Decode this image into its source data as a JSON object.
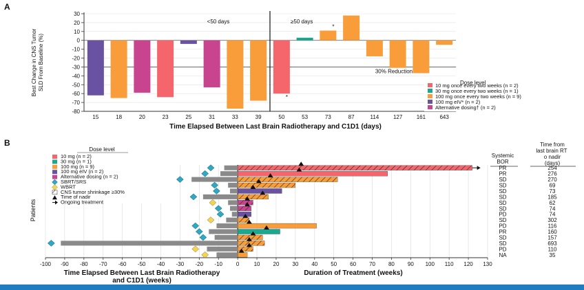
{
  "colors": {
    "red": "#f4666b",
    "teal": "#1aa88f",
    "orange": "#f99d3a",
    "purple": "#6a52a3",
    "magenta": "#c9448f",
    "gray": "#8a8a8a",
    "diamond": "#2fa8c6",
    "wbrt": "#f4d54b",
    "footer": "#1f7cc1"
  },
  "chart_data": [
    {
      "type": "bar",
      "panel_label": "A",
      "ylabel": "Best Change in CNS Tumor SLD From Baseline (%)",
      "xlabel": "Time Elapsed Between Last Brain Radiotherapy and C1D1 (days)",
      "ylim": [
        -80,
        30
      ],
      "yticks": [
        30,
        20,
        10,
        0,
        -10,
        -20,
        -30,
        -40,
        -50,
        -60,
        -70,
        -80
      ],
      "categories": [
        "15",
        "18",
        "20",
        "23",
        "25",
        "31",
        "33",
        "39",
        "50",
        "53",
        "73",
        "87",
        "114",
        "127",
        "161",
        "643"
      ],
      "values": [
        -62,
        -65,
        -59,
        -64,
        -4,
        -53,
        -77,
        -68,
        -60,
        3,
        11,
        28,
        -18,
        -31,
        -37,
        -5
      ],
      "dose": [
        "eIV",
        "100",
        "alt",
        "10",
        "eIV",
        "alt",
        "100",
        "100",
        "10",
        "30",
        "100",
        "100",
        "100",
        "100",
        "100",
        "100"
      ],
      "asterisk_on": [
        "50",
        "73"
      ],
      "split_before": "50",
      "group_labels": [
        "<50 days",
        "≥50 days"
      ],
      "reference_line": {
        "value": -30,
        "label": "30% Reduction"
      },
      "legend": {
        "title": "Dose level",
        "entries": [
          {
            "key": "10",
            "label": "10 mg once every two weeks (n = 2)"
          },
          {
            "key": "30",
            "label": "30 mg once every two weeks (n = 1)"
          },
          {
            "key": "100",
            "label": "100 mg once every two weeks (n = 9)"
          },
          {
            "key": "eIV",
            "label": "100 mg eIV* (n = 2)"
          },
          {
            "key": "alt",
            "label": "Alternative dosing† (n = 2)"
          }
        ]
      }
    },
    {
      "type": "swimmer",
      "panel_label": "B",
      "ylabel": "Patients",
      "xlabel_left": "Time Elapsed Between Last Brain Radiotherapy and C1D1 (weeks)",
      "xlabel_right": "Duration of Treatment (weeks)",
      "xlim": [
        -100,
        130
      ],
      "xticks": [
        -100,
        -90,
        -80,
        -70,
        -60,
        -50,
        -40,
        -30,
        -20,
        -10,
        0,
        10,
        20,
        30,
        40,
        50,
        60,
        70,
        80,
        90,
        100,
        110,
        120,
        130
      ],
      "rows": [
        {
          "dose": "10",
          "pre": -7,
          "duration": 122,
          "srs_at": -14,
          "wbrt_at": null,
          "shrink": true,
          "nadir": 33,
          "ongoing": true
        },
        {
          "dose": "10",
          "pre": -9,
          "duration": 78,
          "srs_at": -17,
          "wbrt_at": null,
          "shrink": false,
          "nadir": 32,
          "ongoing": false
        },
        {
          "dose": "100",
          "pre": -24,
          "duration": 52,
          "srs_at": -30,
          "wbrt_at": null,
          "shrink": true,
          "nadir": 17,
          "ongoing": false
        },
        {
          "dose": "100",
          "pre": -5,
          "duration": 30,
          "srs_at": -12,
          "wbrt_at": null,
          "shrink": true,
          "nadir": 11,
          "ongoing": false
        },
        {
          "dose": "eIV",
          "pre": -4,
          "duration": 23,
          "srs_at": -11,
          "wbrt_at": null,
          "shrink": false,
          "nadir": 8,
          "ongoing": false
        },
        {
          "dose": "100",
          "pre": -18,
          "duration": 16,
          "srs_at": -23,
          "wbrt_at": null,
          "shrink": true,
          "nadir": 13,
          "ongoing": false
        },
        {
          "dose": "alt",
          "pre": -5,
          "duration": 8,
          "srs_at": null,
          "wbrt_at": -13,
          "shrink": true,
          "nadir": 5,
          "ongoing": false
        },
        {
          "dose": "alt",
          "pre": -4,
          "duration": 7,
          "srs_at": -10,
          "wbrt_at": null,
          "shrink": true,
          "nadir": 5,
          "ongoing": false
        },
        {
          "dose": "eIV",
          "pre": -3,
          "duration": 7,
          "srs_at": -9,
          "wbrt_at": null,
          "shrink": false,
          "nadir": null,
          "ongoing": false
        },
        {
          "dose": "100",
          "pre": -6,
          "duration": 6,
          "srs_at": null,
          "wbrt_at": -14,
          "shrink": true,
          "nadir": 4,
          "ongoing": false
        },
        {
          "dose": "100",
          "pre": -11,
          "duration": 41,
          "srs_at": -22,
          "wbrt_at": null,
          "shrink": false,
          "nadir": 6,
          "ongoing": false
        },
        {
          "dose": "30",
          "pre": -15,
          "duration": 22,
          "srs_at": -20,
          "wbrt_at": null,
          "shrink": false,
          "nadir": 15,
          "ongoing": false
        },
        {
          "dose": "100",
          "pre": -12,
          "duration": 13,
          "srs_at": -18,
          "wbrt_at": null,
          "shrink": true,
          "nadir": 8,
          "ongoing": false
        },
        {
          "dose": "100",
          "pre": -92,
          "duration": 14,
          "srs_at": -97,
          "wbrt_at": null,
          "shrink": true,
          "nadir": 6,
          "ongoing": false
        },
        {
          "dose": "100",
          "pre": -16,
          "duration": 8,
          "srs_at": null,
          "wbrt_at": -22,
          "shrink": true,
          "nadir": 6,
          "ongoing": false
        },
        {
          "dose": "100",
          "pre": -11,
          "duration": 5,
          "srs_at": null,
          "wbrt_at": -17,
          "shrink": false,
          "nadir": 2,
          "ongoing": false
        }
      ],
      "legend": {
        "title": "Dose level",
        "entries": [
          {
            "kind": "swatch",
            "key": "10",
            "label": "10 mg (n = 2)"
          },
          {
            "kind": "swatch",
            "key": "30",
            "label": "30 mg (n = 1)"
          },
          {
            "kind": "swatch",
            "key": "100",
            "label": "100 mg (n = 9)"
          },
          {
            "kind": "swatch",
            "key": "eIV",
            "label": "100 mg eIV (n = 2)"
          },
          {
            "kind": "swatch",
            "key": "alt",
            "label": "Alternative dosing (n = 2)"
          },
          {
            "kind": "srs",
            "label": "SBRT/SRS"
          },
          {
            "kind": "wbrt",
            "label": "WBRT"
          },
          {
            "kind": "hatch",
            "label": "CNS tumor shrinkage ≥30%"
          },
          {
            "kind": "nadir",
            "label": "Time of nadir"
          },
          {
            "kind": "arrow",
            "label": "Ongoing treatment"
          }
        ]
      },
      "table": {
        "headers": [
          "Systemic BOR",
          "Time from last brain RT to nadir (days)"
        ],
        "bor": [
          "PR",
          "PR",
          "SD",
          "SD",
          "SD",
          "SD",
          "SD",
          "SD",
          "PD",
          "SD",
          "PD",
          "PR",
          "SD",
          "SD",
          "PD",
          "NA"
        ],
        "days": [
          "254",
          "276",
          "270",
          "69",
          "73",
          "185",
          "62",
          "74",
          "74",
          "302",
          "116",
          "160",
          "157",
          "693",
          "110",
          "35"
        ]
      }
    }
  ]
}
